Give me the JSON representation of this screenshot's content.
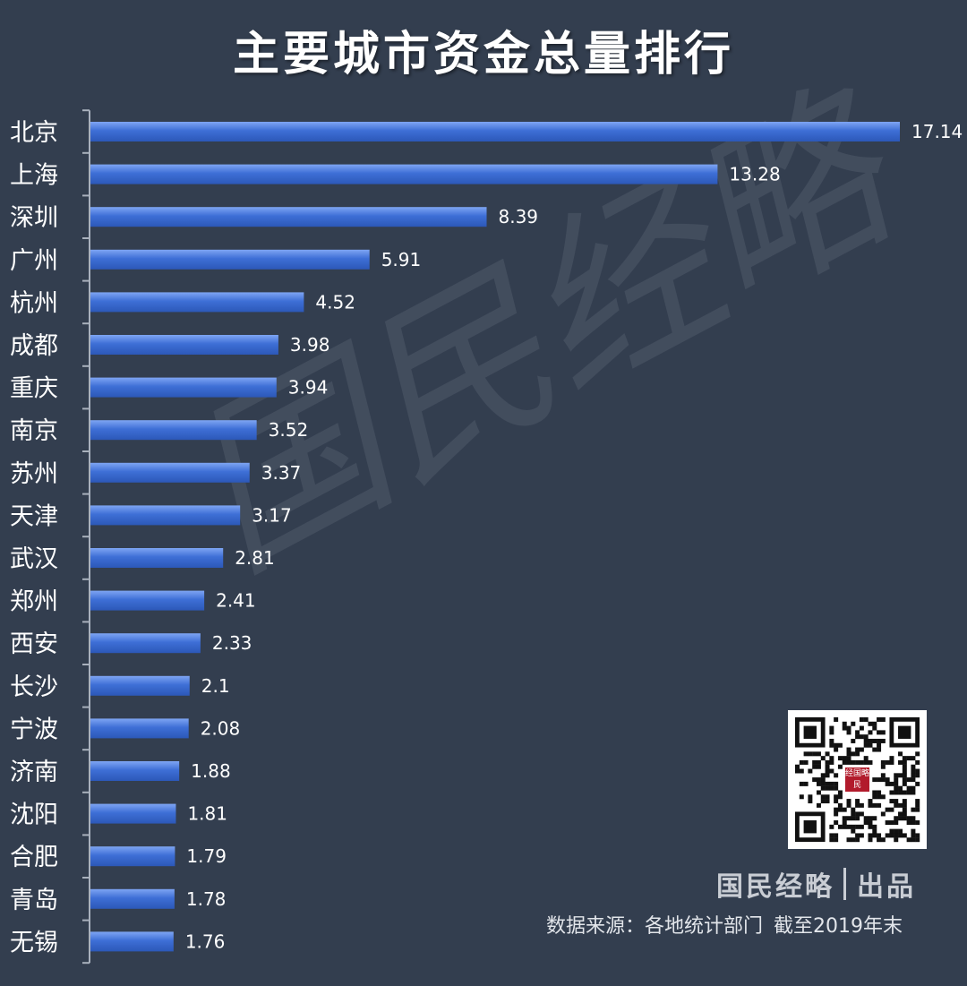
{
  "chart_data": {
    "type": "bar",
    "orientation": "horizontal",
    "title": "主要城市资金总量排行",
    "categories": [
      "北京",
      "上海",
      "深圳",
      "广州",
      "杭州",
      "成都",
      "重庆",
      "南京",
      "苏州",
      "天津",
      "武汉",
      "郑州",
      "西安",
      "长沙",
      "宁波",
      "济南",
      "沈阳",
      "合肥",
      "青岛",
      "无锡"
    ],
    "values": [
      17.14,
      13.28,
      8.39,
      5.91,
      4.52,
      3.98,
      3.94,
      3.52,
      3.37,
      3.17,
      2.81,
      2.41,
      2.33,
      2.1,
      2.08,
      1.88,
      1.81,
      1.79,
      1.78,
      1.76
    ],
    "value_labels": [
      "17.14",
      "13.28",
      "8.39",
      "5.91",
      "4.52",
      "3.98",
      "3.94",
      "3.52",
      "3.37",
      "3.17",
      "2.81",
      "2.41",
      "2.33",
      "2.1",
      "2.08",
      "1.88",
      "1.81",
      "1.79",
      "1.78",
      "1.76"
    ],
    "xlabel": "",
    "ylabel": "",
    "grid": false,
    "legend": "none",
    "colors": {
      "bar_fill": "#3e6fd6",
      "bar_highlight": "#6f9af0",
      "background": "#333e4f",
      "axis": "#a9b1bd",
      "text": "#ffffff"
    }
  },
  "watermark": "国民经略",
  "brand": {
    "name": "国民经略",
    "suffix": "出品",
    "qr_center_text": "经国略民"
  },
  "footer": {
    "source_label": "数据来源：各地统计部门",
    "cutoff": "截至2019年末"
  },
  "icons": [
    "qr-code-icon"
  ]
}
